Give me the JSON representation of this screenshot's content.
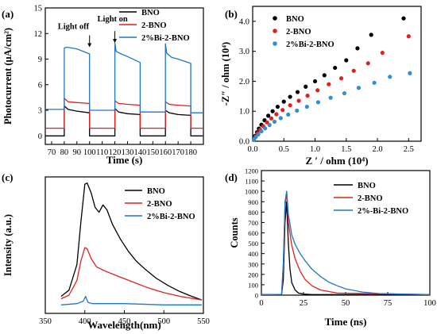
{
  "chart_data": [
    {
      "panel": "(a)",
      "type": "line",
      "xlabel": "Time (s)",
      "ylabel": "Photocurrent (μA/cm²)",
      "xlim": [
        65,
        190
      ],
      "ylim": [
        -1,
        15
      ],
      "xticks": [
        "70",
        "80",
        "90",
        "100",
        "110",
        "120",
        "130",
        "140",
        "150",
        "160",
        "170",
        "180"
      ],
      "yticks": [
        "0",
        "3",
        "6",
        "9",
        "12",
        "15"
      ],
      "legend_position": "top-right",
      "annotations": [
        {
          "text": "Light off",
          "x": 100,
          "y": 10.3
        },
        {
          "text": "Light on",
          "x": 120,
          "y": 10.8
        }
      ],
      "series": [
        {
          "name": "BNO",
          "color": "#000000",
          "x": [
            65,
            80,
            80,
            83,
            90,
            100,
            100,
            120,
            120,
            123,
            130,
            140,
            140,
            160,
            160,
            163,
            170,
            180,
            180,
            190
          ],
          "values": [
            0,
            0,
            3.5,
            3.1,
            2.9,
            2.7,
            0,
            0,
            3.2,
            2.8,
            2.6,
            2.5,
            0,
            0,
            3.0,
            2.7,
            2.5,
            2.4,
            0,
            0
          ]
        },
        {
          "name": "2-BNO",
          "color": "#e21f1f",
          "x": [
            65,
            80,
            80,
            83,
            90,
            100,
            100,
            120,
            120,
            123,
            130,
            140,
            140,
            160,
            160,
            163,
            170,
            180,
            180,
            190
          ],
          "values": [
            0.9,
            0.9,
            4.4,
            4.0,
            3.9,
            3.8,
            0.9,
            0.9,
            4.1,
            3.8,
            3.7,
            3.6,
            0.9,
            0.9,
            4.0,
            3.7,
            3.6,
            3.5,
            0.9,
            0.9
          ]
        },
        {
          "name": "2%Bi-2-BNO",
          "color": "#1f77c4",
          "x": [
            65,
            80,
            80,
            82,
            90,
            100,
            100,
            120,
            120,
            121,
            125,
            130,
            140,
            140,
            160,
            160,
            161,
            165,
            170,
            180,
            180,
            190
          ],
          "values": [
            3.1,
            3.1,
            10.3,
            10.4,
            10.2,
            9.6,
            3.0,
            3.0,
            10.9,
            9.9,
            9.6,
            9.3,
            8.6,
            2.8,
            2.8,
            10.8,
            9.7,
            9.2,
            9.0,
            8.5,
            2.7,
            2.7
          ]
        }
      ]
    },
    {
      "panel": "(b)",
      "type": "scatter",
      "xlabel": "Z ′ / ohm (10⁴)",
      "ylabel": "-Z″ / ohm (10⁴)",
      "xlim": [
        0,
        2.7
      ],
      "ylim": [
        0,
        4.5
      ],
      "xticks": [
        "0.0",
        "0.5",
        "1.0",
        "1.5",
        "2.0",
        "2.5"
      ],
      "yticks": [
        "0.0",
        "1.0",
        "2.0",
        "3.0",
        "4.0"
      ],
      "legend_position": "top-left",
      "series": [
        {
          "name": "BNO",
          "color": "#000000",
          "x": [
            0.02,
            0.04,
            0.07,
            0.1,
            0.14,
            0.19,
            0.25,
            0.32,
            0.4,
            0.5,
            0.6,
            0.72,
            0.85,
            1.0,
            1.15,
            1.32,
            1.5,
            1.68,
            1.9,
            2.42
          ],
          "values": [
            0.08,
            0.18,
            0.3,
            0.42,
            0.55,
            0.7,
            0.85,
            1.0,
            1.15,
            1.32,
            1.48,
            1.64,
            1.82,
            2.0,
            2.2,
            2.45,
            2.7,
            3.1,
            3.55,
            4.1
          ]
        },
        {
          "name": "2-BNO",
          "color": "#e21f1f",
          "x": [
            0.02,
            0.05,
            0.08,
            0.12,
            0.17,
            0.23,
            0.3,
            0.38,
            0.48,
            0.6,
            0.74,
            0.88,
            1.04,
            1.22,
            1.42,
            1.62,
            1.85,
            2.08,
            2.5
          ],
          "values": [
            0.07,
            0.16,
            0.27,
            0.38,
            0.5,
            0.63,
            0.76,
            0.9,
            1.04,
            1.2,
            1.35,
            1.52,
            1.7,
            1.9,
            2.1,
            2.35,
            2.6,
            2.95,
            3.5
          ]
        },
        {
          "name": "2%Bi-2-BNO",
          "color": "#2e8fd6",
          "x": [
            0.02,
            0.05,
            0.09,
            0.14,
            0.2,
            0.27,
            0.35,
            0.45,
            0.57,
            0.71,
            0.87,
            1.05,
            1.25,
            1.47,
            1.7,
            1.95,
            2.2,
            2.52
          ],
          "values": [
            0.06,
            0.14,
            0.23,
            0.33,
            0.43,
            0.54,
            0.65,
            0.77,
            0.89,
            1.02,
            1.15,
            1.3,
            1.45,
            1.6,
            1.78,
            1.95,
            2.15,
            2.27
          ]
        }
      ]
    },
    {
      "panel": "(c)",
      "type": "line",
      "xlabel": "Wavelength(nm)",
      "ylabel": "Intensity (a.u.)",
      "xlim": [
        350,
        550
      ],
      "xticks": [
        "350",
        "400",
        "450",
        "500",
        "550"
      ],
      "yticks_shown": false,
      "legend_position": "top-right",
      "series": [
        {
          "name": "BNO",
          "color": "#000000",
          "x": [
            370,
            380,
            390,
            395,
            400,
            403,
            408,
            413,
            418,
            423,
            428,
            435,
            445,
            455,
            465,
            475,
            490,
            505,
            520,
            535,
            548
          ],
          "values": [
            0.07,
            0.12,
            0.33,
            0.68,
            0.99,
            1.0,
            0.92,
            0.8,
            0.76,
            0.82,
            0.78,
            0.66,
            0.54,
            0.44,
            0.36,
            0.3,
            0.22,
            0.16,
            0.11,
            0.07,
            0.04
          ]
        },
        {
          "name": "2-BNO",
          "color": "#e21f1f",
          "x": [
            370,
            380,
            390,
            395,
            400,
            403,
            408,
            415,
            425,
            440,
            460,
            480,
            500,
            520,
            548
          ],
          "values": [
            0.05,
            0.08,
            0.2,
            0.36,
            0.47,
            0.46,
            0.38,
            0.31,
            0.28,
            0.24,
            0.19,
            0.14,
            0.1,
            0.07,
            0.04
          ]
        },
        {
          "name": "2%Bi-2-BNO",
          "color": "#1f77c4",
          "x": [
            370,
            390,
            398,
            401,
            404,
            410,
            450,
            500,
            548
          ],
          "values": [
            0.0,
            0.01,
            0.03,
            0.07,
            0.02,
            0.01,
            0.01,
            0.0,
            0.0
          ]
        }
      ]
    },
    {
      "panel": "(d)",
      "type": "line",
      "xlabel": "Time (ns)",
      "ylabel": "Counts",
      "xlim": [
        0,
        100
      ],
      "ylim": [
        0,
        1200
      ],
      "xticks": [
        "0",
        "25",
        "50",
        "75",
        "100"
      ],
      "yticks": [
        "0",
        "100",
        "200",
        "300",
        "400",
        "500",
        "600",
        "700",
        "800",
        "900",
        "1000",
        "1100",
        "1200"
      ],
      "legend_position": "top-right",
      "series": [
        {
          "name": "BNO",
          "color": "#000000",
          "x": [
            0,
            12,
            13,
            14,
            15,
            16,
            17,
            18,
            20,
            22,
            25,
            30,
            100
          ],
          "values": [
            5,
            8,
            150,
            700,
            900,
            500,
            250,
            120,
            50,
            20,
            10,
            5,
            5
          ]
        },
        {
          "name": "2-BNO",
          "color": "#e21f1f",
          "x": [
            0,
            12,
            13,
            14,
            15,
            16,
            18,
            20,
            23,
            26,
            30,
            35,
            45,
            100
          ],
          "values": [
            5,
            8,
            300,
            850,
            1000,
            700,
            480,
            350,
            230,
            150,
            90,
            50,
            20,
            5
          ]
        },
        {
          "name": "2%-Bi-2-BNO",
          "color": "#1f77c4",
          "x": [
            0,
            12,
            13,
            14,
            15,
            16,
            18,
            20,
            23,
            26,
            30,
            35,
            40,
            45,
            50,
            60,
            70,
            100
          ],
          "values": [
            5,
            8,
            300,
            900,
            1000,
            780,
            580,
            490,
            400,
            330,
            250,
            180,
            125,
            90,
            60,
            30,
            15,
            5
          ]
        }
      ]
    }
  ]
}
